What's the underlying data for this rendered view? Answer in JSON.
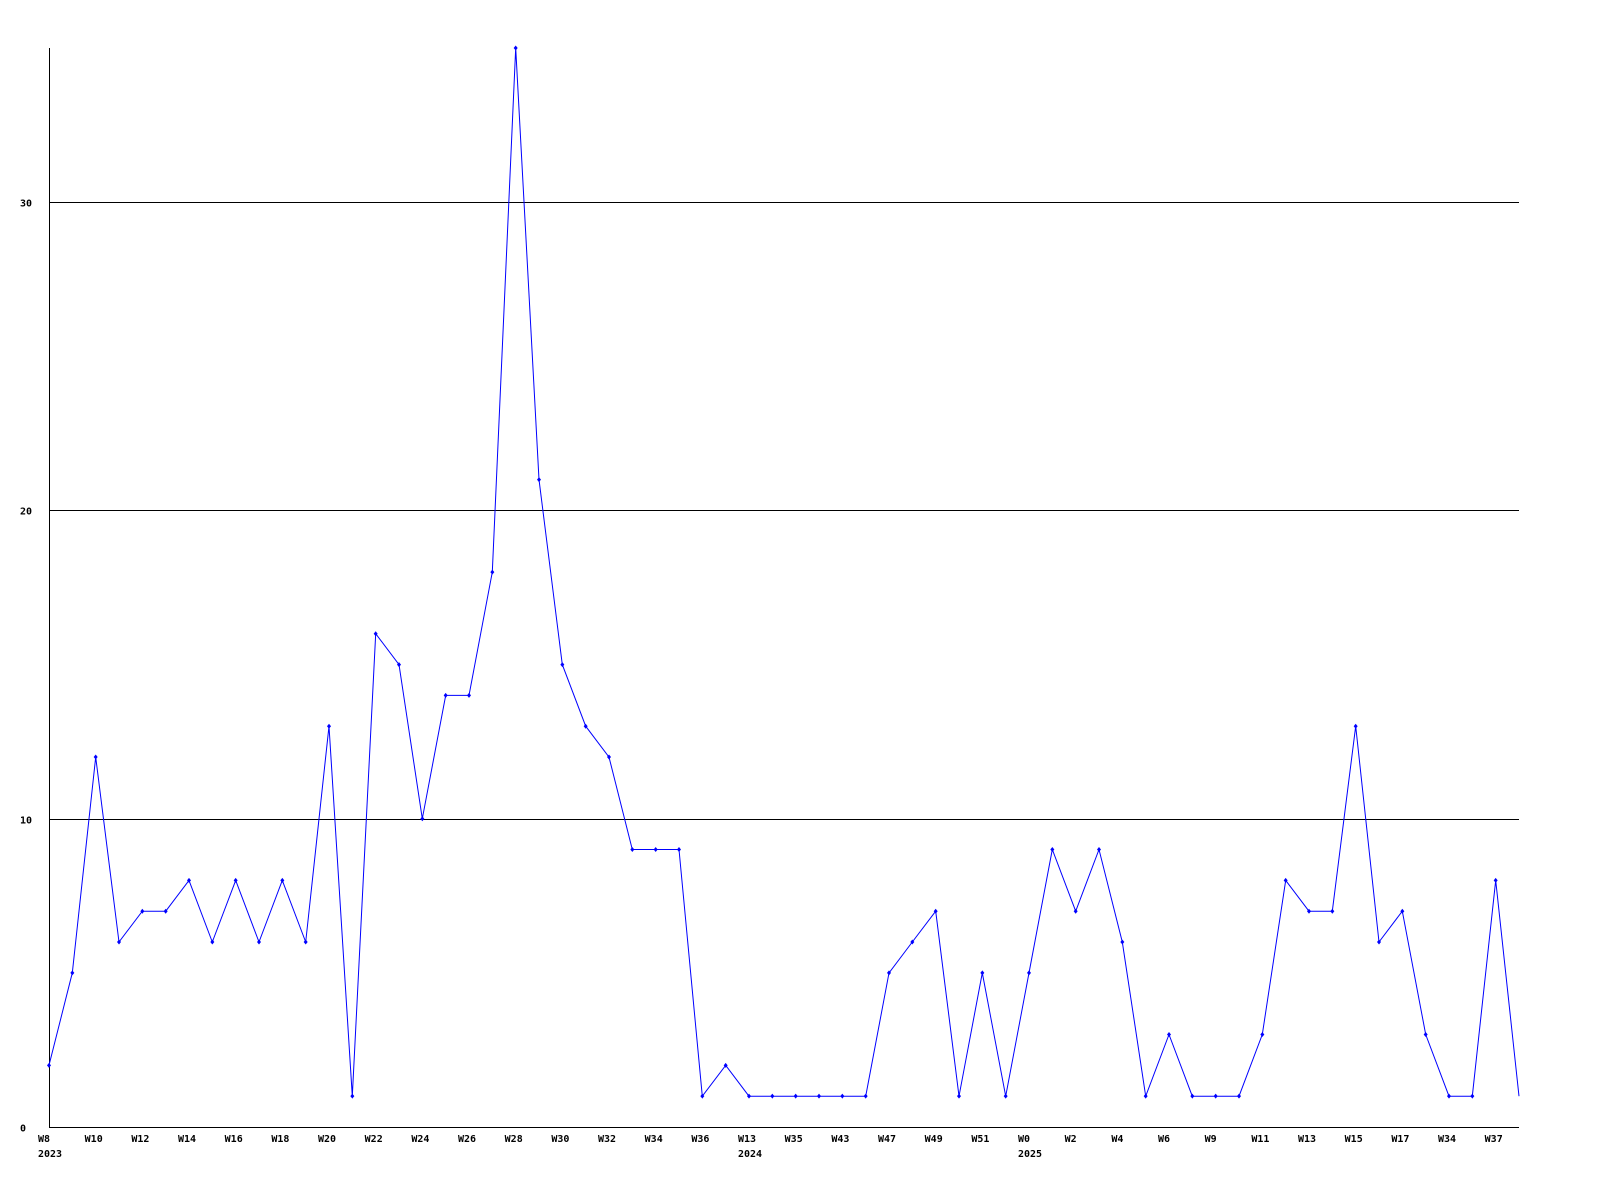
{
  "chart_data": {
    "type": "line",
    "title": "",
    "xlabel": "",
    "ylabel": "",
    "ylim": [
      0,
      35
    ],
    "grid": true,
    "y_ticks": [
      0,
      10,
      20,
      30
    ],
    "line_color": "#0000ff",
    "x_ticks": [
      {
        "label": "W8",
        "year": "2023"
      },
      {
        "label": "W10"
      },
      {
        "label": "W12"
      },
      {
        "label": "W14"
      },
      {
        "label": "W16"
      },
      {
        "label": "W18"
      },
      {
        "label": "W20"
      },
      {
        "label": "W22"
      },
      {
        "label": "W24"
      },
      {
        "label": "W26"
      },
      {
        "label": "W28"
      },
      {
        "label": "W30"
      },
      {
        "label": "W32"
      },
      {
        "label": "W34"
      },
      {
        "label": "W36"
      },
      {
        "label": "W13",
        "year": "2024"
      },
      {
        "label": "W35"
      },
      {
        "label": "W43"
      },
      {
        "label": "W47"
      },
      {
        "label": "W49"
      },
      {
        "label": "W51"
      },
      {
        "label": "W0",
        "year": "2025"
      },
      {
        "label": "W2"
      },
      {
        "label": "W4"
      },
      {
        "label": "W6"
      },
      {
        "label": "W9"
      },
      {
        "label": "W11"
      },
      {
        "label": "W13"
      },
      {
        "label": "W15"
      },
      {
        "label": "W17"
      },
      {
        "label": "W34"
      },
      {
        "label": "W37"
      }
    ],
    "values": [
      2,
      5,
      12,
      6,
      7,
      7,
      8,
      6,
      8,
      6,
      8,
      6,
      13,
      1,
      16,
      15,
      10,
      14,
      14,
      18,
      35,
      21,
      15,
      13,
      12,
      9,
      9,
      9,
      1,
      2,
      1,
      1,
      1,
      1,
      1,
      1,
      5,
      6,
      7,
      1,
      5,
      1,
      5,
      9,
      7,
      9,
      6,
      1,
      3,
      1,
      1,
      1,
      3,
      8,
      7,
      7,
      13,
      6,
      7,
      3,
      1,
      1,
      8,
      1
    ]
  }
}
